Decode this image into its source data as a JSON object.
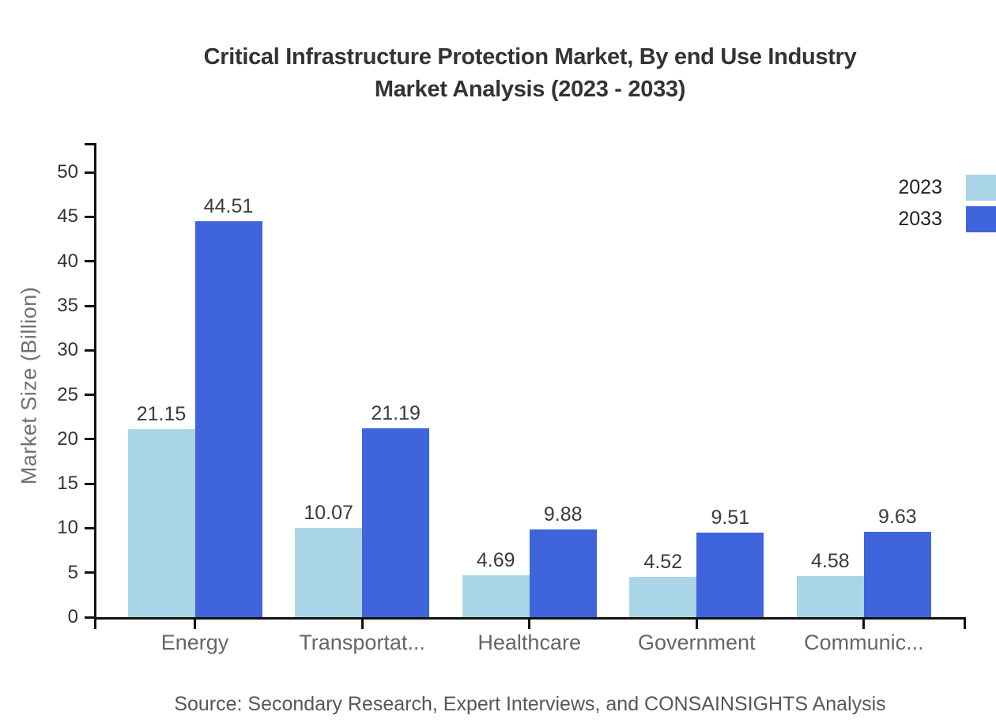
{
  "title": {
    "line1": "Critical Infrastructure Protection Market, By end Use Industry",
    "line2": "Market Analysis (2023 - 2033)"
  },
  "chart_data": {
    "type": "bar",
    "categories": [
      "Energy",
      "Transportat...",
      "Healthcare",
      "Government",
      "Communic..."
    ],
    "series": [
      {
        "name": "2023",
        "color": "#aad5e6",
        "values": [
          21.15,
          10.07,
          4.69,
          4.52,
          4.58
        ]
      },
      {
        "name": "2033",
        "color": "#3f64dc",
        "values": [
          44.51,
          21.19,
          9.88,
          9.51,
          9.63
        ]
      }
    ],
    "xlabel": "",
    "ylabel": "Market Size (Billion)",
    "yticks": [
      0,
      5,
      10,
      15,
      20,
      25,
      30,
      35,
      40,
      45,
      50
    ],
    "ylim": [
      0,
      53.3
    ],
    "grid": false,
    "legend_position": "top-right",
    "value_labels": true,
    "axis_color": "#111111"
  },
  "source": "Source: Secondary Research, Expert Interviews, and CONSAINSIGHTS Analysis"
}
